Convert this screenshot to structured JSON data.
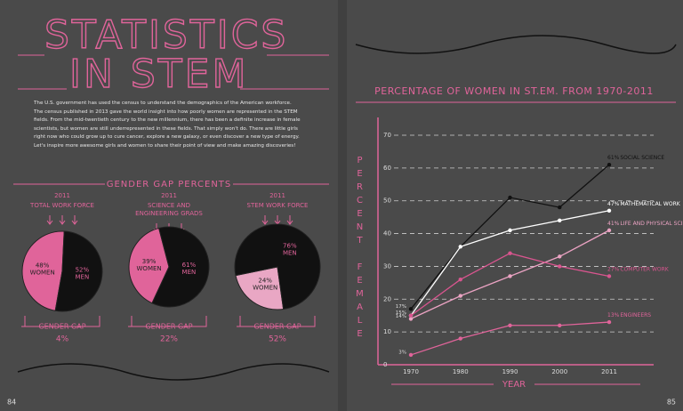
{
  "title_lines": [
    "STATISTICS",
    "IN STEM"
  ],
  "intro": "The U.S. government has used the census to understand the demographics of the American workforce. The census published in 2013 gave the world insight into how poorly women are represented in the STEM fields. From the mid-twentieth century to the new millennium, there has been a definite increase in female scientists, but women are still underrepresented in these fields. That simply won't do. There are little girls right now who could grow up to cure cancer, explore a new galaxy, or even discover a new type of energy. Let's inspire more awesome girls and women to share their point of view and make amazing discoveries!",
  "section_heading": "GENDER GAP PERCENTS",
  "page_numbers": [
    "84",
    "85"
  ],
  "chart_data": [
    {
      "type": "pie",
      "year": "2011",
      "title_lines": [
        "TOTAL WORK FORCE"
      ],
      "labels": [
        "WOMEN",
        "MEN"
      ],
      "values": [
        48,
        52
      ],
      "value_labels": [
        "48%",
        "52%"
      ],
      "colors": [
        "#e0649a",
        "#111111"
      ],
      "gap_label": "GENDER GAP",
      "gap": "4%"
    },
    {
      "type": "pie",
      "year": "2011",
      "title_lines": [
        "SCIENCE AND",
        "ENGINEERING GRADS"
      ],
      "labels": [
        "WOMEN",
        "MEN"
      ],
      "values": [
        39,
        61
      ],
      "value_labels": [
        "39%",
        "61%"
      ],
      "colors": [
        "#e0649a",
        "#111111"
      ],
      "gap_label": "GENDER GAP",
      "gap": "22%"
    },
    {
      "type": "pie",
      "year": "2011",
      "title_lines": [
        "STEM WORK FORCE"
      ],
      "labels": [
        "WOMEN",
        "MEN"
      ],
      "values": [
        24,
        76
      ],
      "value_labels": [
        "24%",
        "76%"
      ],
      "colors": [
        "#e9a7c4",
        "#111111"
      ],
      "gap_label": "GENDER GAP",
      "gap": "52%"
    },
    {
      "type": "line",
      "title": "PERCENTAGE OF WOMEN IN ST.EM. FROM 1970-2011",
      "y_label": "PERCENT FEMALE",
      "x_label": "YEAR",
      "categories": [
        "1970",
        "1980",
        "1990",
        "2000",
        "2011"
      ],
      "ylim": [
        0,
        70
      ],
      "yticks": [
        0,
        10,
        20,
        30,
        40,
        50,
        60,
        70
      ],
      "grid": true,
      "series": [
        {
          "name": "SOCIAL SCIENCE",
          "color": "#111111",
          "values": [
            17,
            36,
            51,
            48,
            61
          ],
          "value_labels": [
            "17%",
            null,
            null,
            null,
            "61%"
          ]
        },
        {
          "name": "MATHEMATICAL WORK",
          "color": "#ffffff",
          "values": [
            15,
            36,
            41,
            44,
            47
          ],
          "value_labels": [
            "15%",
            null,
            null,
            null,
            "47%"
          ]
        },
        {
          "name": "LIFE AND PHYSICAL SCIENCES",
          "color": "#eba3c3",
          "values": [
            14,
            21,
            27,
            33,
            41
          ],
          "value_labels": [
            "14%",
            null,
            null,
            null,
            "41%"
          ]
        },
        {
          "name": "COMPUTER WORK",
          "color": "#d9558f",
          "values": [
            15,
            26,
            34,
            30,
            27
          ],
          "value_labels": [
            null,
            null,
            null,
            null,
            "27%"
          ]
        },
        {
          "name": "ENGINEERS",
          "color": "#e0649a",
          "values": [
            3,
            8,
            12,
            12,
            13
          ],
          "value_labels": [
            "3%",
            null,
            null,
            null,
            "13%"
          ]
        }
      ]
    }
  ]
}
